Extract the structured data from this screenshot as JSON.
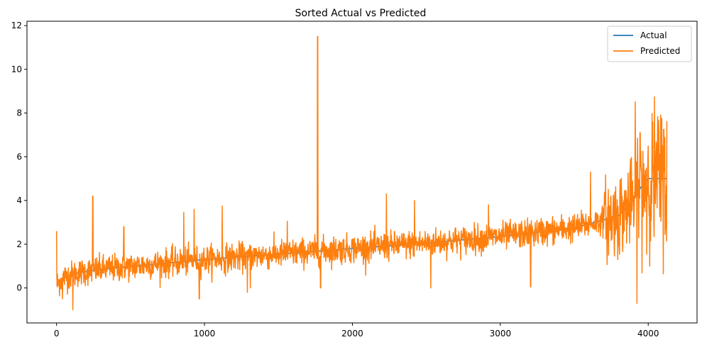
{
  "chart_data": {
    "type": "line",
    "title": "Sorted Actual vs Predicted",
    "xlabel": "",
    "ylabel": "",
    "xlim": [
      -200,
      4330
    ],
    "ylim": [
      -1.6,
      12.2
    ],
    "x_ticks": [
      0,
      1000,
      2000,
      3000,
      4000
    ],
    "y_ticks": [
      0,
      2,
      4,
      6,
      8,
      10,
      12
    ],
    "grid": false,
    "legend_position": "top-right",
    "n_points": 4128,
    "series": [
      {
        "name": "Actual",
        "color": "#1f77b4",
        "shape": "sorted ascending curve",
        "anchors": [
          [
            0,
            0.15
          ],
          [
            50,
            0.5
          ],
          [
            150,
            0.7
          ],
          [
            300,
            0.85
          ],
          [
            600,
            1.05
          ],
          [
            1000,
            1.3
          ],
          [
            1500,
            1.55
          ],
          [
            2000,
            1.8
          ],
          [
            2500,
            2.05
          ],
          [
            3000,
            2.35
          ],
          [
            3500,
            2.75
          ],
          [
            3800,
            3.3
          ],
          [
            3900,
            4.0
          ],
          [
            3950,
            4.6
          ],
          [
            4000,
            5.0
          ],
          [
            4127,
            5.0
          ]
        ]
      },
      {
        "name": "Predicted",
        "color": "#ff7f0e",
        "shape": "noisy around actual",
        "spikes": [
          [
            0,
            2.6
          ],
          [
            40,
            -0.5
          ],
          [
            110,
            -1.0
          ],
          [
            245,
            4.2
          ],
          [
            455,
            2.8
          ],
          [
            860,
            3.45
          ],
          [
            930,
            3.6
          ],
          [
            965,
            -0.5
          ],
          [
            1120,
            3.75
          ],
          [
            1290,
            -0.2
          ],
          [
            1310,
            0.0
          ],
          [
            1560,
            3.05
          ],
          [
            1765,
            11.5
          ],
          [
            1785,
            0.0
          ],
          [
            2230,
            4.3
          ],
          [
            2420,
            4.0
          ],
          [
            2530,
            0.0
          ],
          [
            2920,
            3.8
          ],
          [
            3205,
            0.05
          ],
          [
            3610,
            5.3
          ],
          [
            3945,
            7.1
          ],
          [
            4010,
            1.0
          ],
          [
            4105,
            7.25
          ]
        ]
      }
    ]
  }
}
